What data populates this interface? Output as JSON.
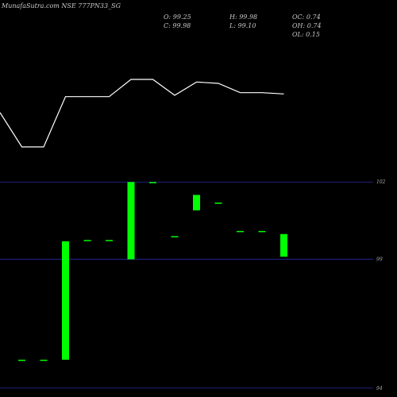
{
  "chart_data": {
    "type": "candlestick",
    "title": "MunafaSutra.com NSE 777PN33_SG",
    "stats": {
      "open": "O: 99.25",
      "high": "H: 99.98",
      "change": "C: 99.98",
      "low": "L: 99.10",
      "oc": "OC: 0.74",
      "oh": "OH: 0.74",
      "ol": "OL: 0.15"
    },
    "y_ticks": [
      {
        "value": 102,
        "label": "102"
      },
      {
        "value": 99,
        "label": "99"
      },
      {
        "value": 94,
        "label": "94"
      }
    ],
    "ylim": [
      93.9,
      102.1
    ],
    "price_line": [
      97.2,
      94.6,
      94.6,
      98.4,
      98.4,
      98.4,
      99.7,
      99.7,
      98.5,
      99.5,
      99.4,
      98.7,
      98.7,
      98.6
    ],
    "candles": [
      {
        "open": 95.1,
        "close": 95.1,
        "color": "#00ff00"
      },
      {
        "open": 95.1,
        "close": 95.1,
        "color": "#00ff00"
      },
      {
        "open": 95.1,
        "close": 99.7,
        "color": "#00ff00"
      },
      {
        "open": 99.75,
        "close": 99.75,
        "color": "#00ff00"
      },
      {
        "open": 99.75,
        "close": 99.75,
        "color": "#00ff00"
      },
      {
        "open": 99.0,
        "close": 102.0,
        "color": "#00ff00"
      },
      {
        "open": 102.0,
        "close": 102.0,
        "color": "#00ff00"
      },
      {
        "open": 99.9,
        "close": 99.9,
        "color": "#00ff00"
      },
      {
        "open": 100.9,
        "close": 101.5,
        "color": "#00ff00"
      },
      {
        "open": 101.2,
        "close": 101.2,
        "color": "#00ff00"
      },
      {
        "open": 100.1,
        "close": 100.1,
        "color": "#00ff00"
      },
      {
        "open": 100.1,
        "close": 100.1,
        "color": "#00ff00"
      },
      {
        "open": 99.1,
        "close": 99.98,
        "color": "#00ff00"
      }
    ],
    "colors": {
      "background": "#000000",
      "grid": "#2a2aa0",
      "line": "#ffffff",
      "candle": "#00ff00"
    }
  }
}
